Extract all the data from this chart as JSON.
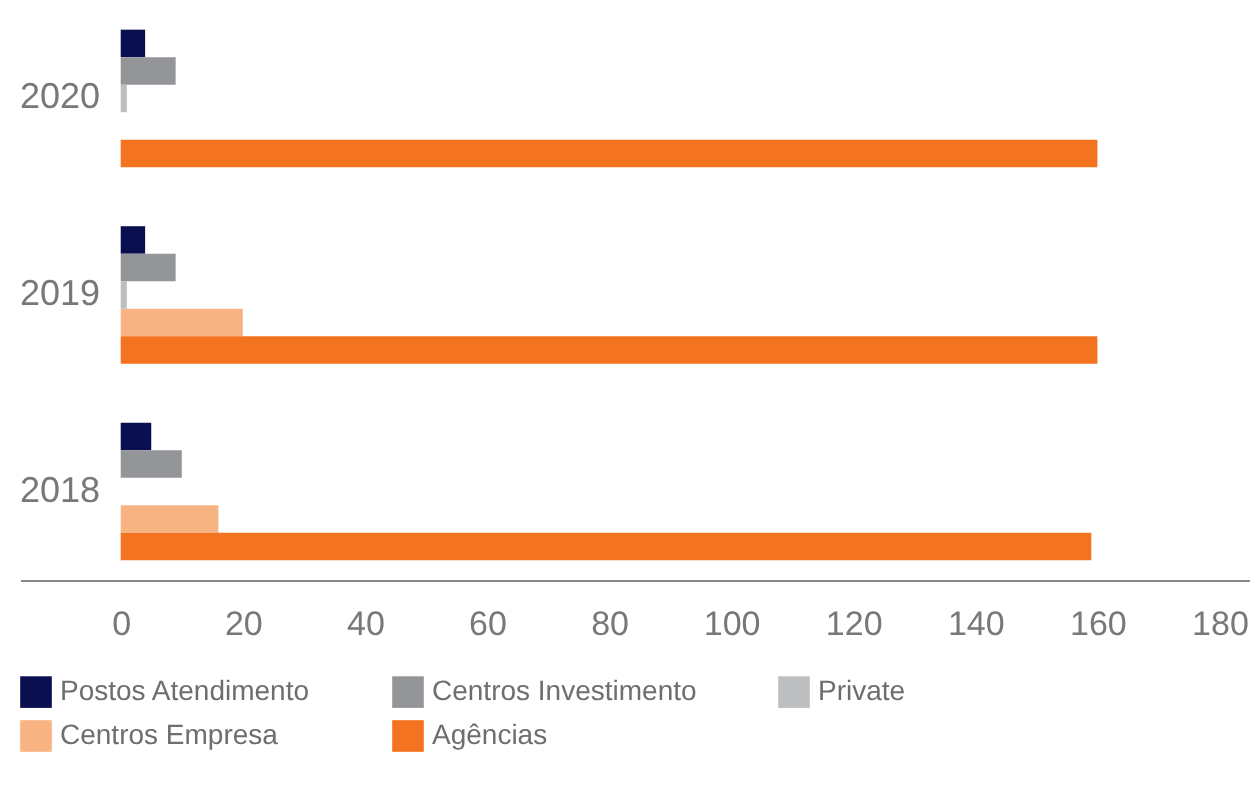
{
  "chart_data": {
    "type": "bar",
    "orientation": "horizontal",
    "categories": [
      "2020",
      "2019",
      "2018"
    ],
    "series": [
      {
        "name": "Postos Atendimento",
        "color": "#0a0f4f",
        "values": [
          4,
          4,
          5
        ]
      },
      {
        "name": "Centros Investimento",
        "color": "#939598",
        "values": [
          9,
          9,
          10
        ]
      },
      {
        "name": "Private",
        "color": "#bcbec0",
        "values": [
          1,
          1,
          null
        ]
      },
      {
        "name": "Centros Empresa",
        "color": "#f8b383",
        "values": [
          null,
          20,
          16
        ]
      },
      {
        "name": "Agências",
        "color": "#f37321",
        "values": [
          160,
          160,
          159
        ]
      }
    ],
    "xlim": [
      -16.5,
      185
    ],
    "xticks": [
      0,
      20,
      40,
      60,
      80,
      100,
      120,
      140,
      160,
      180
    ],
    "grid": false,
    "legend": "bottom"
  }
}
